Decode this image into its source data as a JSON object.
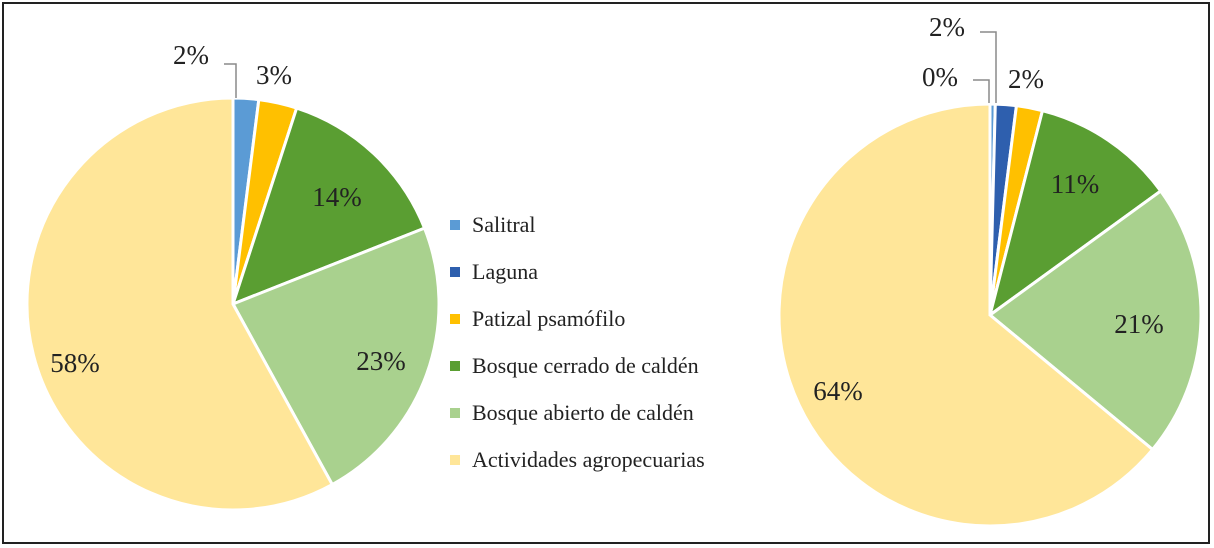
{
  "colors": {
    "Salitral": "#5B9BD5",
    "Laguna": "#2E5FAE",
    "Patizal psamófilo": "#FFC000",
    "Bosque cerrado de caldén": "#5A9E32",
    "Bosque abierto de caldén": "#A9D18E",
    "Actividades agropecuarias": "#FFE699"
  },
  "chart_data": [
    {
      "type": "pie",
      "categories": [
        "Salitral",
        "Patizal psamófilo",
        "Bosque cerrado de caldén",
        "Bosque abierto de caldén",
        "Actividades agropecuarias"
      ],
      "values": [
        2,
        3,
        14,
        23,
        58
      ],
      "labels": [
        "2%",
        "3%",
        "14%",
        "23%",
        "58%"
      ]
    },
    {
      "type": "pie",
      "categories": [
        "Salitral",
        "Laguna",
        "Patizal psamófilo",
        "Bosque cerrado de caldén",
        "Bosque abierto de caldén",
        "Actividades agropecuarias"
      ],
      "values": [
        0.4,
        1.6,
        2,
        11,
        21,
        64
      ],
      "labels": [
        "0%",
        "2%",
        "2%",
        "11%",
        "21%",
        "64%"
      ]
    }
  ],
  "legend": [
    "Salitral",
    "Laguna",
    "Patizal psamófilo",
    "Bosque cerrado de caldén",
    "Bosque abierto de caldén",
    "Actividades agropecuarias"
  ]
}
